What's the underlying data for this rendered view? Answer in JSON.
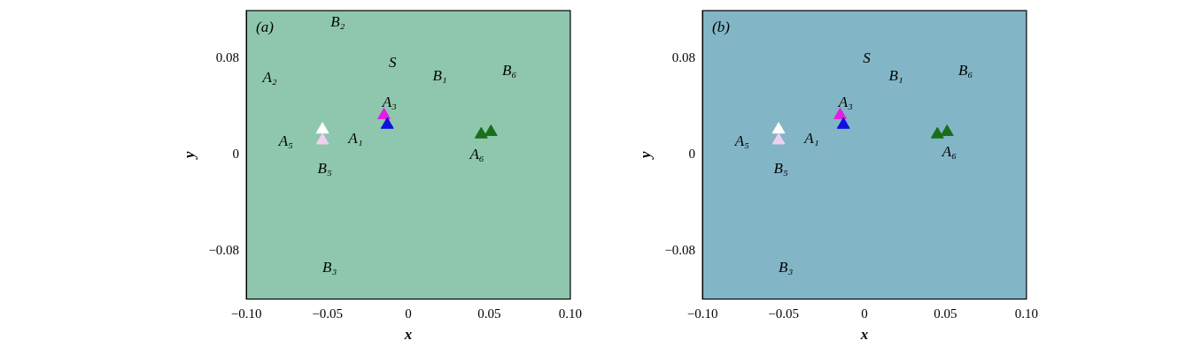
{
  "chart_data": [
    {
      "type": "scatter",
      "x_label": "x",
      "y_label": "y",
      "xlim": [
        -0.1,
        0.1
      ],
      "ylim": [
        -0.12,
        0.12
      ],
      "xticks": [
        {
          "value": -0.1,
          "label": "−0.10"
        },
        {
          "value": -0.05,
          "label": "−0.05"
        },
        {
          "value": 0,
          "label": "0"
        },
        {
          "value": 0.05,
          "label": "0.05"
        },
        {
          "value": 0.1,
          "label": "0.10"
        }
      ],
      "yticks": [
        {
          "value": -0.08,
          "label": "−0.08"
        },
        {
          "value": 0,
          "label": "0"
        },
        {
          "value": 0.08,
          "label": "0.08"
        }
      ],
      "grid": false,
      "marker": "triangle",
      "x": [
        -0.015,
        -0.013,
        -0.053,
        -0.053,
        0.045,
        0.051
      ],
      "values": [
        0.033,
        0.025,
        0.021,
        0.012,
        0.017,
        0.019
      ],
      "colors": [
        "#e020e0",
        "#1010e0",
        "#ffffff",
        "#f0d0f0",
        "#1a6e1a",
        "#1a6e1a"
      ],
      "annotations": [
        {
          "text": "(a)",
          "x": -0.094,
          "y": 0.106
        },
        {
          "text": "B₂",
          "x": -0.048,
          "y": 0.11
        },
        {
          "text": "A₂",
          "x": -0.09,
          "y": 0.064
        },
        {
          "text": "S",
          "x": -0.012,
          "y": 0.076
        },
        {
          "text": "B₁",
          "x": 0.015,
          "y": 0.065
        },
        {
          "text": "B₆",
          "x": 0.058,
          "y": 0.07
        },
        {
          "text": "A₃",
          "x": -0.016,
          "y": 0.043
        },
        {
          "text": "A₁",
          "x": -0.037,
          "y": 0.013
        },
        {
          "text": "A₅",
          "x": -0.08,
          "y": 0.011
        },
        {
          "text": "A₆",
          "x": 0.038,
          "y": 0.0
        },
        {
          "text": "B₅",
          "x": -0.056,
          "y": -0.012
        },
        {
          "text": "B₃",
          "x": -0.053,
          "y": -0.094
        }
      ]
    },
    {
      "type": "scatter",
      "x_label": "x",
      "y_label": "y",
      "xlim": [
        -0.1,
        0.1
      ],
      "ylim": [
        -0.12,
        0.12
      ],
      "xticks": [
        {
          "value": -0.1,
          "label": "−0.10"
        },
        {
          "value": -0.05,
          "label": "−0.05"
        },
        {
          "value": 0,
          "label": "0"
        },
        {
          "value": 0.05,
          "label": "0.05"
        },
        {
          "value": 0.1,
          "label": "0.10"
        }
      ],
      "yticks": [
        {
          "value": -0.08,
          "label": "−0.08"
        },
        {
          "value": 0,
          "label": "0"
        },
        {
          "value": 0.08,
          "label": "0.08"
        }
      ],
      "grid": false,
      "marker": "triangle",
      "x": [
        -0.015,
        -0.013,
        -0.053,
        -0.053,
        0.045,
        0.051
      ],
      "values": [
        0.033,
        0.025,
        0.021,
        0.012,
        0.017,
        0.019
      ],
      "colors": [
        "#e020e0",
        "#1010e0",
        "#ffffff",
        "#f0d0f0",
        "#1a6e1a",
        "#1a6e1a"
      ],
      "annotations": [
        {
          "text": "(b)",
          "x": -0.094,
          "y": 0.106
        },
        {
          "text": "S",
          "x": -0.001,
          "y": 0.08
        },
        {
          "text": "B₁",
          "x": 0.015,
          "y": 0.065
        },
        {
          "text": "B₆",
          "x": 0.058,
          "y": 0.07
        },
        {
          "text": "A₃",
          "x": -0.016,
          "y": 0.043
        },
        {
          "text": "A₁",
          "x": -0.037,
          "y": 0.013
        },
        {
          "text": "A₅",
          "x": -0.08,
          "y": 0.011
        },
        {
          "text": "A₆",
          "x": 0.048,
          "y": 0.002
        },
        {
          "text": "B₅",
          "x": -0.056,
          "y": -0.012
        },
        {
          "text": "B₃",
          "x": -0.053,
          "y": -0.094
        }
      ]
    }
  ]
}
